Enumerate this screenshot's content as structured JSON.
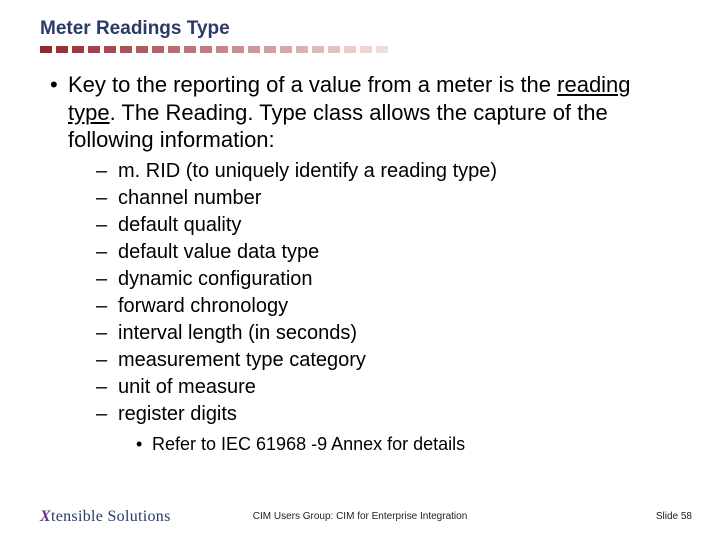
{
  "title": {
    "text": "Meter Readings Type",
    "color": "#2a3a6a"
  },
  "dash_rule": {
    "count": 22,
    "start_color": "#9a2630",
    "end_color": "#f3dbd9"
  },
  "main_bullet": {
    "pre": "Key to the reporting of a value from a meter is the ",
    "underlined": "reading type",
    "post": ". The Reading. Type class allows the capture of the following information:"
  },
  "sub_items": [
    "m. RID (to uniquely identify a reading type)",
    "channel number",
    "default quality",
    "default value data type",
    "dynamic configuration",
    "forward chronology",
    "interval length (in seconds)",
    "measurement type category",
    "unit of measure",
    "register digits"
  ],
  "sub2": "Refer to IEC 61968 -9 Annex for details",
  "footer": {
    "logo_x": "X",
    "logo_rest": "tensible Solutions",
    "center": "CIM Users Group: CIM for Enterprise Integration",
    "right": "Slide 58"
  }
}
